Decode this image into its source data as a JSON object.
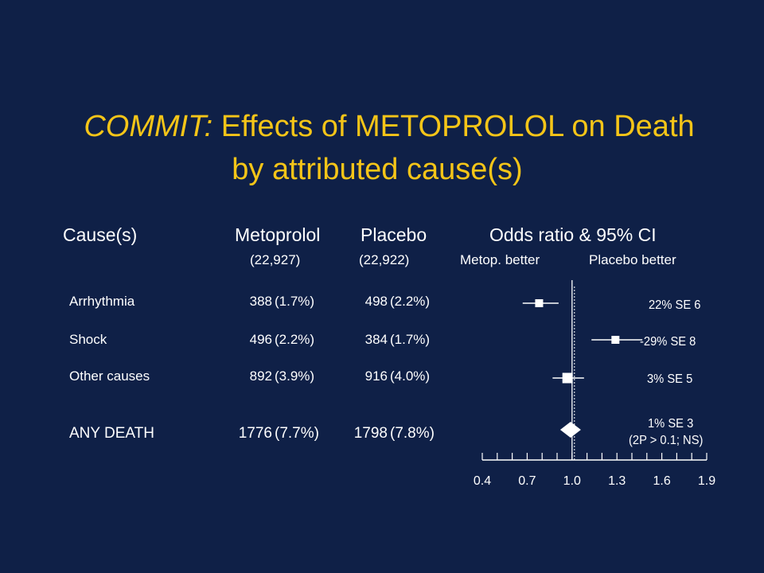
{
  "title": {
    "italic_part": "COMMIT:",
    "line1_rest": " Effects of METOPROLOL on Death",
    "line2": "by attributed cause(s)"
  },
  "headers": {
    "cause": "Cause(s)",
    "metoprolol": "Metoprolol",
    "placebo": "Placebo",
    "odds_ratio": "Odds ratio & 95% CI",
    "metoprolol_n": "(22,927)",
    "placebo_n": "(22,922)",
    "metop_better": "Metop. better",
    "placebo_better": "Placebo better"
  },
  "rows": [
    {
      "cause": "Arrhythmia",
      "metoprolol_count": "388",
      "metoprolol_pct": "(1.7%)",
      "placebo_count": "498",
      "placebo_pct": "(2.2%)",
      "annotation": "22% SE 6"
    },
    {
      "cause": "Shock",
      "metoprolol_count": "496",
      "metoprolol_pct": "(2.2%)",
      "placebo_count": "384",
      "placebo_pct": "(1.7%)",
      "annotation": "-29% SE 8"
    },
    {
      "cause": "Other causes",
      "metoprolol_count": "892",
      "metoprolol_pct": "(3.9%)",
      "placebo_count": "916",
      "placebo_pct": "(4.0%)",
      "annotation": "3% SE 5"
    },
    {
      "cause": "ANY DEATH",
      "metoprolol_count": "1776",
      "metoprolol_pct": "(7.7%)",
      "placebo_count": "1798",
      "placebo_pct": "(7.8%)",
      "annotation": "1% SE 3",
      "annotation2": "(2P > 0.1; NS)"
    }
  ],
  "colors": {
    "background": "#0f2047",
    "title": "#f5c518",
    "text": "#ffffff"
  },
  "chart_data": {
    "type": "forest",
    "xlabel": "",
    "xlim": [
      0.4,
      1.9
    ],
    "xticks": [
      "0.4",
      "0.7",
      "1.0",
      "1.3",
      "1.6",
      "1.9"
    ],
    "minor_tick_step": 0.1,
    "reference_line": 1.0,
    "series": [
      {
        "name": "Arrhythmia",
        "or": 0.78,
        "ci": [
          0.67,
          0.91
        ],
        "marker": "square"
      },
      {
        "name": "Shock",
        "or": 1.29,
        "ci": [
          1.13,
          1.47
        ],
        "marker": "square"
      },
      {
        "name": "Other causes",
        "or": 0.97,
        "ci": [
          0.87,
          1.08
        ],
        "marker": "square"
      },
      {
        "name": "ANY DEATH",
        "or": 0.99,
        "ci": [
          0.93,
          1.05
        ],
        "marker": "diamond"
      }
    ]
  }
}
